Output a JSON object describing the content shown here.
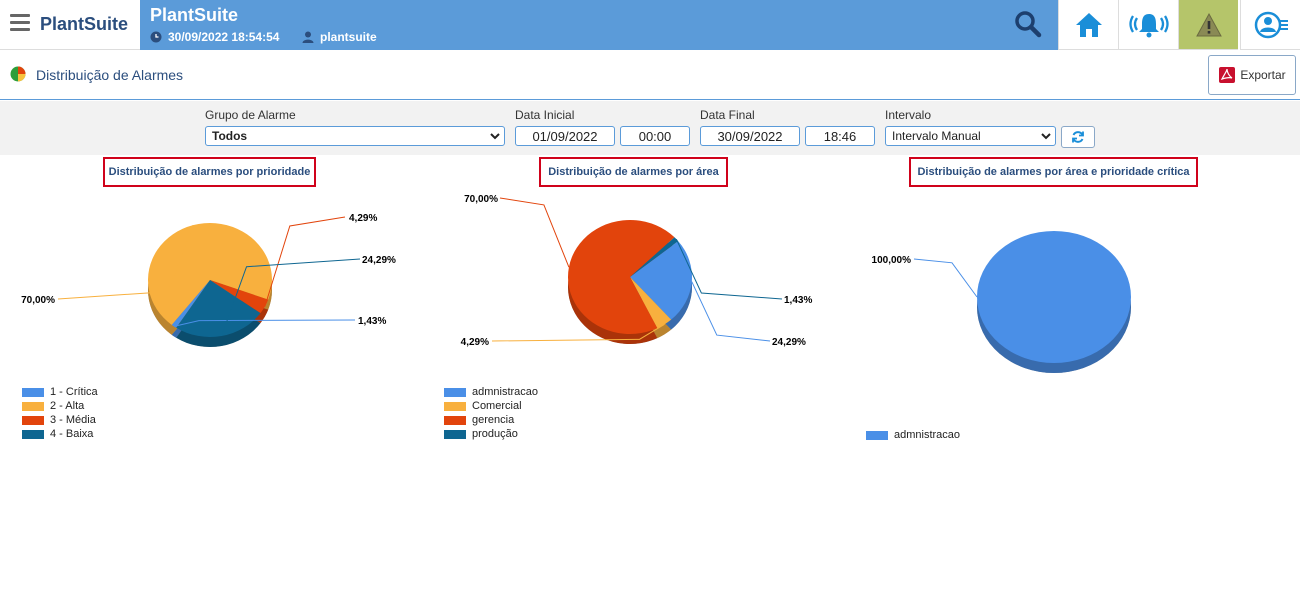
{
  "header": {
    "brand": "PlantSuite",
    "app_title": "PlantSuite",
    "datetime": "30/09/2022 18:54:54",
    "user": "plantsuite"
  },
  "page": {
    "title": "Distribuição de Alarmes",
    "export_label": "Exportar"
  },
  "filters": {
    "group_label": "Grupo de Alarme",
    "group_value": "Todos",
    "start_label": "Data Inicial",
    "start_date": "01/09/2022",
    "start_time": "00:00",
    "end_label": "Data Final",
    "end_date": "30/09/2022",
    "end_time": "18:46",
    "interval_label": "Intervalo",
    "interval_value": "Intervalo Manual"
  },
  "colors": {
    "blue": "#4a8fe7",
    "orange": "#f8b03e",
    "red": "#e2440c",
    "darkblue": "#0e6691"
  },
  "chart_data": [
    {
      "type": "pie",
      "title": "Distribuição de alarmes por prioridade",
      "slices": [
        {
          "name": "1 - Crítica",
          "value": 1.43,
          "label": "1,43%",
          "color": "#4a8fe7"
        },
        {
          "name": "2 - Alta",
          "value": 70.0,
          "label": "70,00%",
          "color": "#f8b03e"
        },
        {
          "name": "3 - Média",
          "value": 4.29,
          "label": "4,29%",
          "color": "#e2440c"
        },
        {
          "name": "4 - Baixa",
          "value": 24.29,
          "label": "24,29%",
          "color": "#0e6691"
        }
      ],
      "legend": "bottom-left"
    },
    {
      "type": "pie",
      "title": "Distribuição de alarmes por área",
      "slices": [
        {
          "name": "admnistracao",
          "value": 24.29,
          "label": "24,29%",
          "color": "#4a8fe7"
        },
        {
          "name": "Comercial",
          "value": 4.29,
          "label": "4,29%",
          "color": "#f8b03e"
        },
        {
          "name": "gerencia",
          "value": 70.0,
          "label": "70,00%",
          "color": "#e2440c"
        },
        {
          "name": "produção",
          "value": 1.43,
          "label": "1,43%",
          "color": "#0e6691"
        }
      ],
      "legend": "bottom-left"
    },
    {
      "type": "pie",
      "title": "Distribuição de alarmes por área e prioridade crítica",
      "slices": [
        {
          "name": "admnistracao",
          "value": 100.0,
          "label": "100,00%",
          "color": "#4a8fe7"
        }
      ],
      "legend": "bottom-left"
    }
  ]
}
